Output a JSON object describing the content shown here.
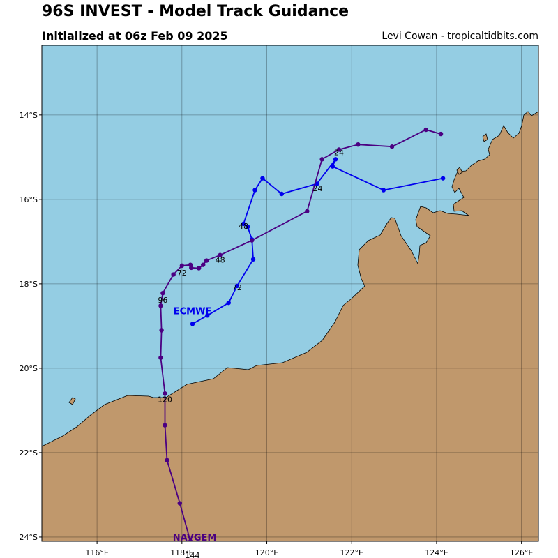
{
  "header": {
    "title": "96S INVEST - Model Track Guidance",
    "subtitle": "Initialized at 06z Feb 09 2025",
    "credit": "Levi Cowan - tropicaltidbits.com"
  },
  "colors": {
    "ocean": "#94cde3",
    "land": "#c0986c",
    "ecmwf": "#0000ee",
    "navgem": "#4b0082"
  },
  "map": {
    "lon_range": [
      114.7,
      126.4
    ],
    "lat_range": [
      -24.1,
      -12.35
    ],
    "lon_ticks": [
      {
        "value": 116,
        "label": "116°E"
      },
      {
        "value": 118,
        "label": "118°E"
      },
      {
        "value": 120,
        "label": "120°E"
      },
      {
        "value": 122,
        "label": "122°E"
      },
      {
        "value": 124,
        "label": "124°E"
      },
      {
        "value": 126,
        "label": "126°E"
      }
    ],
    "lat_ticks": [
      {
        "value": -14,
        "label": "14°S"
      },
      {
        "value": -16,
        "label": "16°S"
      },
      {
        "value": -18,
        "label": "18°S"
      },
      {
        "value": -20,
        "label": "20°S"
      },
      {
        "value": -22,
        "label": "22°S"
      },
      {
        "value": -24,
        "label": "24°S"
      }
    ]
  },
  "chart_data": {
    "type": "map-tracks",
    "tracks": [
      {
        "name": "ECMWF",
        "color": "#0000ee",
        "points": [
          [
            124.15,
            -15.5
          ],
          [
            122.75,
            -15.78
          ],
          [
            121.55,
            -15.22
          ],
          [
            121.62,
            -15.05
          ],
          [
            121.18,
            -15.63
          ],
          [
            120.35,
            -15.87
          ],
          [
            119.9,
            -15.5
          ],
          [
            119.72,
            -15.78
          ],
          [
            119.45,
            -16.58
          ],
          [
            119.55,
            -16.65
          ],
          [
            119.65,
            -16.95
          ],
          [
            119.68,
            -17.42
          ],
          [
            119.3,
            -18.05
          ],
          [
            119.1,
            -18.45
          ],
          [
            118.6,
            -18.75
          ],
          [
            118.25,
            -18.95
          ]
        ],
        "labels": [
          {
            "text": "24",
            "lon": 121.2,
            "lat": -15.8
          },
          {
            "text": "48",
            "lon": 119.45,
            "lat": -16.7
          },
          {
            "text": "72",
            "lon": 119.3,
            "lat": -18.15
          }
        ]
      },
      {
        "name": "NAVGEM",
        "color": "#4b0082",
        "points": [
          [
            124.1,
            -14.45
          ],
          [
            123.75,
            -14.35
          ],
          [
            122.95,
            -14.75
          ],
          [
            122.15,
            -14.7
          ],
          [
            121.7,
            -14.82
          ],
          [
            121.3,
            -15.05
          ],
          [
            120.95,
            -16.28
          ],
          [
            119.65,
            -16.97
          ],
          [
            118.9,
            -17.32
          ],
          [
            118.58,
            -17.45
          ],
          [
            118.5,
            -17.55
          ],
          [
            118.4,
            -17.63
          ],
          [
            118.22,
            -17.62
          ],
          [
            118.2,
            -17.55
          ],
          [
            118.0,
            -17.57
          ],
          [
            117.8,
            -17.78
          ],
          [
            117.55,
            -18.22
          ],
          [
            117.5,
            -18.52
          ],
          [
            117.52,
            -19.1
          ],
          [
            117.5,
            -19.75
          ],
          [
            117.6,
            -20.6
          ],
          [
            117.6,
            -21.35
          ],
          [
            117.65,
            -22.18
          ],
          [
            117.95,
            -23.2
          ],
          [
            118.2,
            -24.1
          ]
        ],
        "labels": [
          {
            "text": "24",
            "lon": 121.7,
            "lat": -14.95
          },
          {
            "text": "48",
            "lon": 118.9,
            "lat": -17.5
          },
          {
            "text": "72",
            "lon": 118.0,
            "lat": -17.8
          },
          {
            "text": "96",
            "lon": 117.55,
            "lat": -18.45
          },
          {
            "text": "120",
            "lon": 117.6,
            "lat": -20.8
          },
          {
            "text": "144",
            "lon": 118.25,
            "lat": -24.5
          }
        ]
      }
    ],
    "model_labels": [
      {
        "text": "ECMWF",
        "color": "#0000ee",
        "lon": 118.25,
        "lat": -18.72
      },
      {
        "text": "NAVGEM",
        "color": "#4b0082",
        "lon": 118.3,
        "lat": -24.08
      }
    ]
  }
}
